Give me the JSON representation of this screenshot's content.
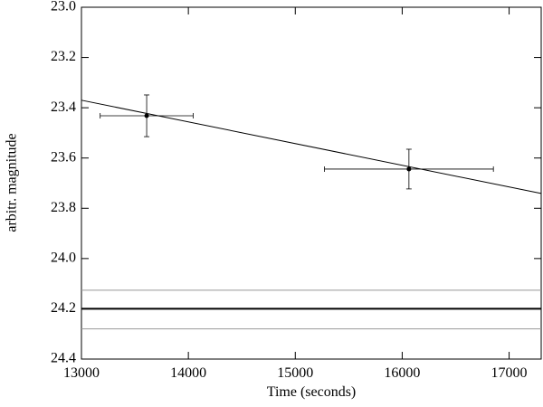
{
  "chart_data": {
    "type": "scatter",
    "xlabel": "Time (seconds)",
    "ylabel": "arbitr. magnitude",
    "xlim": [
      13000,
      17300
    ],
    "ylim": [
      23.0,
      24.4
    ],
    "y_inverted": true,
    "xticks": [
      13000,
      14000,
      15000,
      16000,
      17000
    ],
    "yticks": [
      {
        "value": 23.0,
        "label": "23.0"
      },
      {
        "value": 23.2,
        "label": "23.2"
      },
      {
        "value": 23.4,
        "label": "23.4"
      },
      {
        "value": 23.6,
        "label": "23.6"
      },
      {
        "value": 23.8,
        "label": "23.8"
      },
      {
        "value": 24.0,
        "label": "24.0"
      },
      {
        "value": 24.2,
        "label": "24.2"
      },
      {
        "value": 24.4,
        "label": "24.4"
      }
    ],
    "series": [
      {
        "color": "#000000",
        "x": [
          13610,
          16063
        ],
        "values": [
          23.432,
          23.644
        ],
        "xerr": [
          435,
          790
        ],
        "yerr": [
          0.083,
          0.079
        ]
      }
    ],
    "fit_line": {
      "color": "#000000",
      "x": [
        13000,
        17300
      ],
      "values": [
        23.37,
        23.741
      ]
    },
    "hlines": [
      {
        "value": 24.126,
        "color": "#999999",
        "width": 1
      },
      {
        "value": 24.2,
        "color": "#000000",
        "width": 2
      },
      {
        "value": 24.28,
        "color": "#999999",
        "width": 1
      }
    ]
  }
}
